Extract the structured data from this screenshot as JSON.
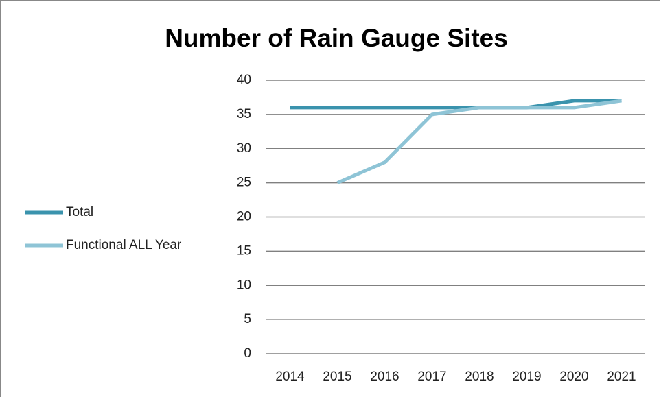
{
  "chart_data": {
    "type": "line",
    "title": "Number of Rain Gauge Sites",
    "categories": [
      "2014",
      "2015",
      "2016",
      "2017",
      "2018",
      "2019",
      "2020",
      "2021"
    ],
    "series": [
      {
        "name": "Total",
        "color": "#3a93ad",
        "values": [
          36,
          36,
          36,
          36,
          36,
          36,
          37,
          37
        ]
      },
      {
        "name": "Functional ALL Year",
        "color": "#8ec4d6",
        "values": [
          null,
          25,
          28,
          35,
          36,
          36,
          36,
          37
        ]
      }
    ],
    "ylim": [
      0,
      40
    ],
    "yticks": [
      0,
      5,
      10,
      15,
      20,
      25,
      30,
      35,
      40
    ],
    "grid": true,
    "legend": "left"
  }
}
